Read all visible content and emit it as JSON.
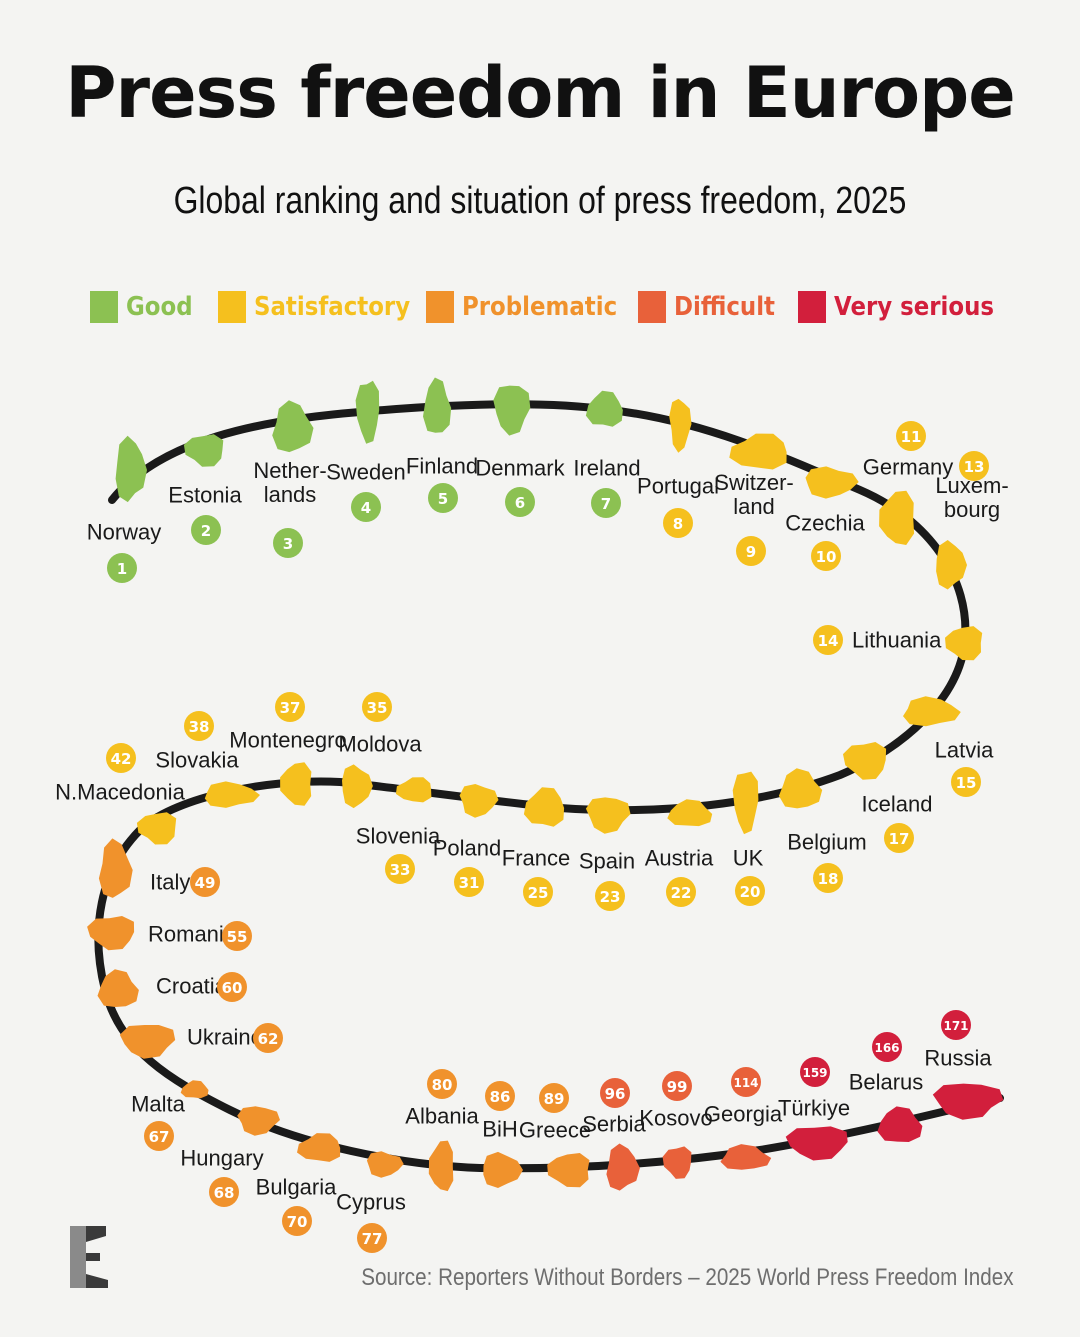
{
  "title": "Press freedom in Europe",
  "subtitle": "Global ranking and situation of press freedom, 2025",
  "source": "Source: Reporters Without Borders – 2025 World Press Freedom Index",
  "colors": {
    "Good": "#8cc152",
    "Satisfactory": "#f5c01e",
    "Problematic": "#f0922c",
    "Difficult": "#e8613a",
    "Very serious": "#d21f3c",
    "track": "#1a1a1a",
    "label": "#1a1a1a"
  },
  "legend": [
    {
      "label": "Good",
      "color": "#8cc152"
    },
    {
      "label": "Satisfactory",
      "color": "#f5c01e"
    },
    {
      "label": "Problematic",
      "color": "#f0922c"
    },
    {
      "label": "Difficult",
      "color": "#e8613a"
    },
    {
      "label": "Very serious",
      "color": "#d21f3c"
    }
  ],
  "chart_data": {
    "type": "table",
    "columns": [
      "country",
      "rank",
      "situation"
    ],
    "rows": [
      {
        "country": "Norway",
        "rank": 1,
        "situation": "Good"
      },
      {
        "country": "Estonia",
        "rank": 2,
        "situation": "Good"
      },
      {
        "country": "Nether-lands",
        "rank": 3,
        "situation": "Good"
      },
      {
        "country": "Sweden",
        "rank": 4,
        "situation": "Good"
      },
      {
        "country": "Finland",
        "rank": 5,
        "situation": "Good"
      },
      {
        "country": "Denmark",
        "rank": 6,
        "situation": "Good"
      },
      {
        "country": "Ireland",
        "rank": 7,
        "situation": "Good"
      },
      {
        "country": "Portugal",
        "rank": 8,
        "situation": "Satisfactory"
      },
      {
        "country": "Switzer-land",
        "rank": 9,
        "situation": "Satisfactory"
      },
      {
        "country": "Czechia",
        "rank": 10,
        "situation": "Satisfactory"
      },
      {
        "country": "Germany",
        "rank": 11,
        "situation": "Satisfactory"
      },
      {
        "country": "Luxem-bourg",
        "rank": 13,
        "situation": "Satisfactory"
      },
      {
        "country": "Lithuania",
        "rank": 14,
        "situation": "Satisfactory"
      },
      {
        "country": "Latvia",
        "rank": 15,
        "situation": "Satisfactory"
      },
      {
        "country": "Iceland",
        "rank": 17,
        "situation": "Satisfactory"
      },
      {
        "country": "Belgium",
        "rank": 18,
        "situation": "Satisfactory"
      },
      {
        "country": "UK",
        "rank": 20,
        "situation": "Satisfactory"
      },
      {
        "country": "Austria",
        "rank": 22,
        "situation": "Satisfactory"
      },
      {
        "country": "Spain",
        "rank": 23,
        "situation": "Satisfactory"
      },
      {
        "country": "France",
        "rank": 25,
        "situation": "Satisfactory"
      },
      {
        "country": "Poland",
        "rank": 31,
        "situation": "Satisfactory"
      },
      {
        "country": "Slovenia",
        "rank": 33,
        "situation": "Satisfactory"
      },
      {
        "country": "Moldova",
        "rank": 35,
        "situation": "Satisfactory"
      },
      {
        "country": "Montenegro",
        "rank": 37,
        "situation": "Satisfactory"
      },
      {
        "country": "Slovakia",
        "rank": 38,
        "situation": "Satisfactory"
      },
      {
        "country": "N.Macedonia",
        "rank": 42,
        "situation": "Satisfactory"
      },
      {
        "country": "Italy",
        "rank": 49,
        "situation": "Problematic"
      },
      {
        "country": "Romania",
        "rank": 55,
        "situation": "Problematic"
      },
      {
        "country": "Croatia",
        "rank": 60,
        "situation": "Problematic"
      },
      {
        "country": "Ukraine",
        "rank": 62,
        "situation": "Problematic"
      },
      {
        "country": "Malta",
        "rank": 67,
        "situation": "Problematic"
      },
      {
        "country": "Hungary",
        "rank": 68,
        "situation": "Problematic"
      },
      {
        "country": "Bulgaria",
        "rank": 70,
        "situation": "Problematic"
      },
      {
        "country": "Cyprus",
        "rank": 77,
        "situation": "Problematic"
      },
      {
        "country": "Albania",
        "rank": 80,
        "situation": "Problematic"
      },
      {
        "country": "BiH",
        "rank": 86,
        "situation": "Problematic"
      },
      {
        "country": "Greece",
        "rank": 89,
        "situation": "Problematic"
      },
      {
        "country": "Serbia",
        "rank": 96,
        "situation": "Difficult"
      },
      {
        "country": "Kosovo",
        "rank": 99,
        "situation": "Difficult"
      },
      {
        "country": "Georgia",
        "rank": 114,
        "situation": "Difficult"
      },
      {
        "country": "Türkiye",
        "rank": 159,
        "situation": "Very serious"
      },
      {
        "country": "Belarus",
        "rank": 166,
        "situation": "Very serious"
      },
      {
        "country": "Russia",
        "rank": 171,
        "situation": "Very serious"
      }
    ]
  }
}
